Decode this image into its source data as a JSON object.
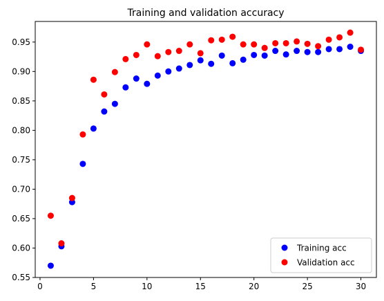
{
  "chart_data": {
    "type": "scatter",
    "title": "Training and validation accuracy",
    "xlabel": "",
    "ylabel": "",
    "xlim": [
      -0.45,
      31.45
    ],
    "ylim": [
      0.55,
      0.985
    ],
    "x_ticks": [
      0,
      5,
      10,
      15,
      20,
      25,
      30
    ],
    "y_ticks": [
      0.55,
      0.6,
      0.65,
      0.7,
      0.75,
      0.8,
      0.85,
      0.9,
      0.95
    ],
    "grid": false,
    "legend_position": "lower-right",
    "x": [
      1,
      2,
      3,
      4,
      5,
      6,
      7,
      8,
      9,
      10,
      11,
      12,
      13,
      14,
      15,
      16,
      17,
      18,
      19,
      20,
      21,
      22,
      23,
      24,
      25,
      26,
      27,
      28,
      29,
      30
    ],
    "series": [
      {
        "name": "Training acc",
        "color": "#0000ff",
        "values": [
          0.57,
          0.603,
          0.678,
          0.743,
          0.803,
          0.832,
          0.845,
          0.873,
          0.888,
          0.879,
          0.893,
          0.9,
          0.905,
          0.911,
          0.919,
          0.913,
          0.927,
          0.914,
          0.92,
          0.928,
          0.927,
          0.935,
          0.929,
          0.935,
          0.933,
          0.933,
          0.938,
          0.938,
          0.942,
          0.935
        ]
      },
      {
        "name": "Validation acc",
        "color": "#ff0000",
        "values": [
          0.655,
          0.608,
          0.685,
          0.793,
          0.886,
          0.861,
          0.899,
          0.921,
          0.928,
          0.946,
          0.926,
          0.933,
          0.935,
          0.946,
          0.931,
          0.953,
          0.954,
          0.959,
          0.946,
          0.946,
          0.94,
          0.948,
          0.948,
          0.951,
          0.947,
          0.943,
          0.954,
          0.958,
          0.966,
          0.937
        ]
      }
    ]
  }
}
